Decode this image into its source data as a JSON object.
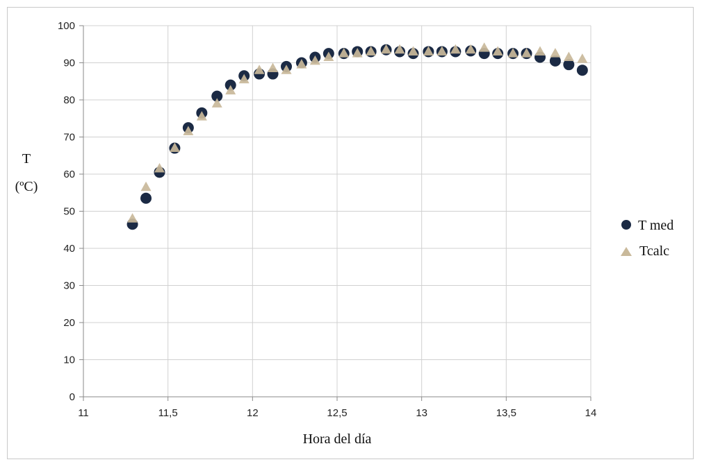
{
  "chart_data": {
    "type": "scatter",
    "title": "",
    "xlabel": "Hora del día",
    "ylabel_line1": "T",
    "ylabel_line2": "(ºC)",
    "xlim": [
      11,
      14
    ],
    "ylim": [
      0,
      100
    ],
    "x_ticks": [
      11,
      11.5,
      12,
      12.5,
      13,
      13.5,
      14
    ],
    "x_tick_labels": [
      "11",
      "11,5",
      "12",
      "12,5",
      "13",
      "13,5",
      "14"
    ],
    "y_ticks": [
      0,
      10,
      20,
      30,
      40,
      50,
      60,
      70,
      80,
      90,
      100
    ],
    "y_tick_labels": [
      "0",
      "10",
      "20",
      "30",
      "40",
      "50",
      "60",
      "70",
      "80",
      "90",
      "100"
    ],
    "grid": true,
    "legend_position": "right",
    "series": [
      {
        "name": "T med",
        "marker": "circle",
        "color": "#1b2a44",
        "x": [
          11.29,
          11.37,
          11.45,
          11.54,
          11.62,
          11.7,
          11.79,
          11.87,
          11.95,
          12.04,
          12.12,
          12.2,
          12.29,
          12.37,
          12.45,
          12.54,
          12.62,
          12.7,
          12.79,
          12.87,
          12.95,
          13.04,
          13.12,
          13.2,
          13.29,
          13.37,
          13.45,
          13.54,
          13.62,
          13.7,
          13.79,
          13.87,
          13.95
        ],
        "y": [
          46.5,
          53.5,
          60.5,
          67,
          72.5,
          76.5,
          81,
          84,
          86.5,
          87,
          87,
          89,
          90,
          91.5,
          92.5,
          92.5,
          93,
          93,
          93.5,
          93,
          92.5,
          93,
          93,
          93,
          93.2,
          92.5,
          92.5,
          92.5,
          92.5,
          91.5,
          90.5,
          89.5,
          88
        ]
      },
      {
        "name": "Tcalc",
        "marker": "triangle",
        "color": "#c9b99a",
        "x": [
          11.29,
          11.37,
          11.45,
          11.54,
          11.62,
          11.7,
          11.79,
          11.87,
          11.95,
          12.04,
          12.12,
          12.2,
          12.29,
          12.37,
          12.45,
          12.54,
          12.62,
          12.7,
          12.79,
          12.87,
          12.95,
          13.04,
          13.12,
          13.2,
          13.29,
          13.37,
          13.45,
          13.54,
          13.62,
          13.7,
          13.79,
          13.87,
          13.95
        ],
        "y": [
          48,
          56.5,
          61.5,
          67,
          71.5,
          75.5,
          79,
          82.5,
          85.5,
          88,
          88.5,
          88,
          89.5,
          90.5,
          91.5,
          92.5,
          92.5,
          93,
          93.5,
          93.5,
          93,
          93,
          93,
          93.5,
          93.5,
          94,
          93,
          92.5,
          92.5,
          93,
          92.5,
          91.5,
          91
        ]
      }
    ]
  }
}
